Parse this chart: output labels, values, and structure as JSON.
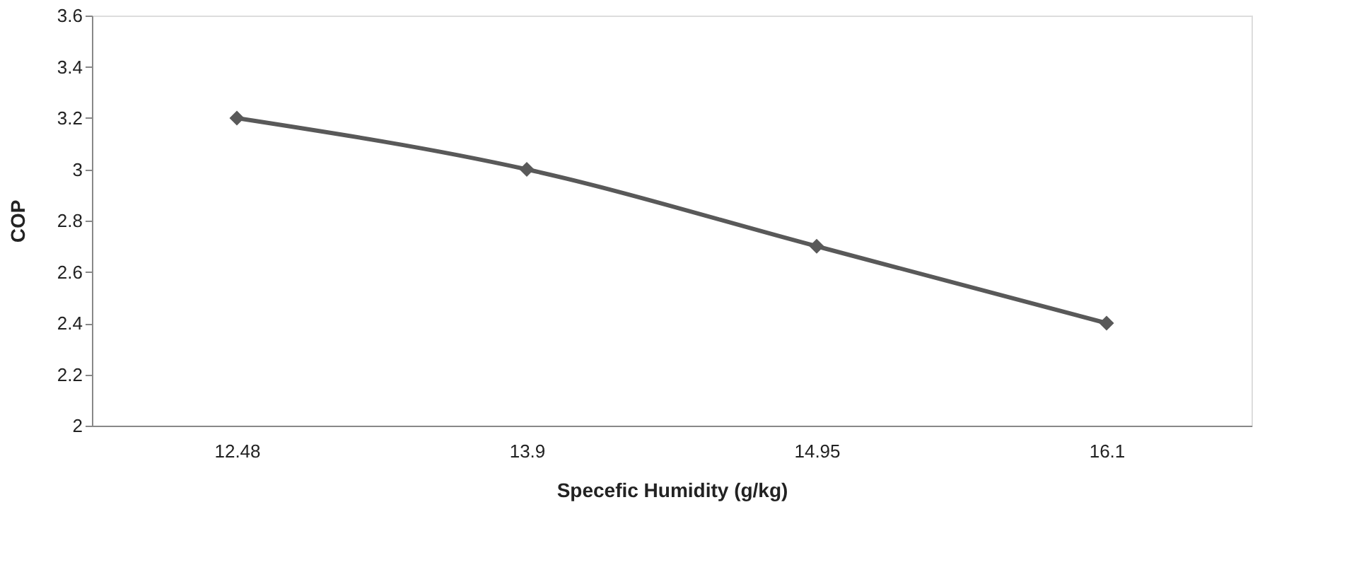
{
  "chart_data": {
    "type": "line",
    "xlabel": "Specefic Humidity (g/kg)",
    "ylabel": "COP",
    "categories": [
      "12.48",
      "13.9",
      "14.95",
      "16.1"
    ],
    "series": [
      {
        "color": "#595959",
        "values": [
          3.2,
          3.0,
          2.7,
          2.4
        ]
      }
    ],
    "ylim": [
      2,
      3.6
    ],
    "yticks": [
      2,
      2.2,
      2.4,
      2.6,
      2.8,
      3,
      3.2,
      3.4,
      3.6
    ],
    "grid": false,
    "legend": false,
    "marker": "diamond",
    "line_style": "solid"
  }
}
